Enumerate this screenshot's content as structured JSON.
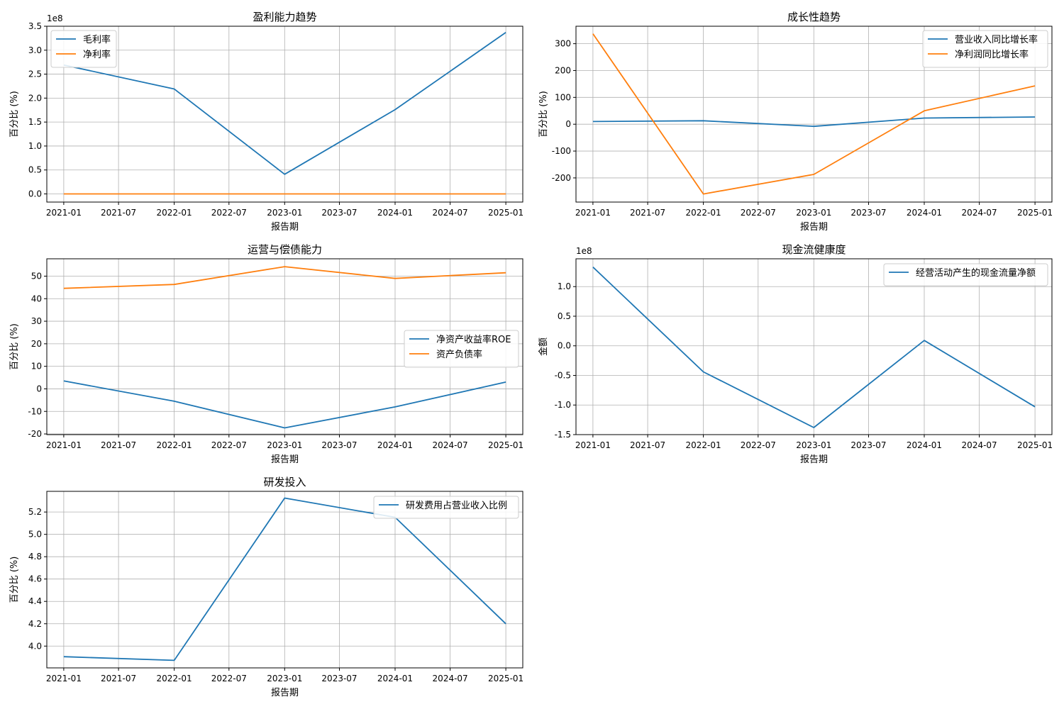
{
  "chart_data": [
    {
      "type": "line",
      "title": "盈利能力趋势",
      "xlabel": "报告期",
      "ylabel": "百分比 (%)",
      "offset_label": "1e8",
      "y_scale": 100000000,
      "x_ticks": [
        "2021-01",
        "2021-07",
        "2022-01",
        "2022-07",
        "2023-01",
        "2023-07",
        "2024-01",
        "2024-07",
        "2025-01"
      ],
      "y_ticks": [
        0.0,
        0.5,
        1.0,
        1.5,
        2.0,
        2.5,
        3.0,
        3.5
      ],
      "y_tick_labels": [
        "0.0",
        "0.5",
        "1.0",
        "1.5",
        "2.0",
        "2.5",
        "3.0",
        "3.5"
      ],
      "ylim": [
        -0.17,
        3.5
      ],
      "legend_position": "upper-left",
      "x": [
        "2021-01",
        "2022-01",
        "2023-01",
        "2024-01",
        "2025-01"
      ],
      "series": [
        {
          "name": "毛利率",
          "color": "#1f77b4",
          "values": [
            269000000,
            219000000,
            41000000,
            176000000,
            337000000
          ]
        },
        {
          "name": "净利率",
          "color": "#ff7f0e",
          "values": [
            0,
            0,
            0,
            0,
            0
          ]
        }
      ]
    },
    {
      "type": "line",
      "title": "成长性趋势",
      "xlabel": "报告期",
      "ylabel": "百分比 (%)",
      "offset_label": "",
      "y_scale": 1,
      "x_ticks": [
        "2021-01",
        "2021-07",
        "2022-01",
        "2022-07",
        "2023-01",
        "2023-07",
        "2024-01",
        "2024-07",
        "2025-01"
      ],
      "y_ticks": [
        -200,
        -100,
        0,
        100,
        200,
        300
      ],
      "y_tick_labels": [
        "-200",
        "-100",
        "0",
        "100",
        "200",
        "300"
      ],
      "ylim": [
        -290,
        365
      ],
      "legend_position": "upper-right",
      "x": [
        "2021-01",
        "2022-01",
        "2023-01",
        "2024-01",
        "2025-01"
      ],
      "series": [
        {
          "name": "营业收入同比增长率",
          "color": "#1f77b4",
          "values": [
            10,
            13,
            -8,
            23,
            27
          ]
        },
        {
          "name": "净利润同比增长率",
          "color": "#ff7f0e",
          "values": [
            337,
            -260,
            -187,
            50,
            143
          ]
        }
      ]
    },
    {
      "type": "line",
      "title": "运营与偿债能力",
      "xlabel": "报告期",
      "ylabel": "百分比 (%)",
      "offset_label": "",
      "y_scale": 1,
      "x_ticks": [
        "2021-01",
        "2021-07",
        "2022-01",
        "2022-07",
        "2023-01",
        "2023-07",
        "2024-01",
        "2024-07",
        "2025-01"
      ],
      "y_ticks": [
        -20,
        -10,
        0,
        10,
        20,
        30,
        40,
        50
      ],
      "y_tick_labels": [
        "-20",
        "-10",
        "0",
        "10",
        "20",
        "30",
        "40",
        "50"
      ],
      "ylim": [
        -20.3,
        57.7
      ],
      "legend_position": "center-right",
      "x": [
        "2021-01",
        "2022-01",
        "2023-01",
        "2024-01",
        "2025-01"
      ],
      "series": [
        {
          "name": "净资产收益率ROE",
          "color": "#1f77b4",
          "values": [
            3.5,
            -5.5,
            -17.3,
            -8,
            3
          ]
        },
        {
          "name": "资产负债率",
          "color": "#ff7f0e",
          "values": [
            44.6,
            46.3,
            54.2,
            49,
            51.5
          ]
        }
      ]
    },
    {
      "type": "line",
      "title": "现金流健康度",
      "xlabel": "报告期",
      "ylabel": "金额",
      "offset_label": "1e8",
      "y_scale": 100000000,
      "x_ticks": [
        "2021-01",
        "2021-07",
        "2022-01",
        "2022-07",
        "2023-01",
        "2023-07",
        "2024-01",
        "2024-07",
        "2025-01"
      ],
      "y_ticks": [
        -1.5,
        -1.0,
        -0.5,
        0.0,
        0.5,
        1.0
      ],
      "y_tick_labels": [
        "-1.5",
        "-1.0",
        "-0.5",
        "0.0",
        "0.5",
        "1.0"
      ],
      "ylim": [
        -1.5,
        1.47
      ],
      "legend_position": "upper-right",
      "x": [
        "2021-01",
        "2022-01",
        "2023-01",
        "2024-01",
        "2025-01"
      ],
      "series": [
        {
          "name": "经营活动产生的现金流量净额",
          "color": "#1f77b4",
          "values": [
            133000000,
            -44000000,
            -138000000,
            9000000,
            -103000000
          ]
        }
      ]
    },
    {
      "type": "line",
      "title": "研发投入",
      "xlabel": "报告期",
      "ylabel": "百分比 (%)",
      "offset_label": "",
      "y_scale": 1,
      "x_ticks": [
        "2021-01",
        "2021-07",
        "2022-01",
        "2022-07",
        "2023-01",
        "2023-07",
        "2024-01",
        "2024-07",
        "2025-01"
      ],
      "y_ticks": [
        4.0,
        4.2,
        4.4,
        4.6,
        4.8,
        5.0,
        5.2
      ],
      "y_tick_labels": [
        "4.0",
        "4.2",
        "4.4",
        "4.6",
        "4.8",
        "5.0",
        "5.2"
      ],
      "ylim": [
        3.805,
        5.385
      ],
      "legend_position": "upper-right",
      "x": [
        "2021-01",
        "2022-01",
        "2023-01",
        "2024-01",
        "2025-01"
      ],
      "series": [
        {
          "name": "研发费用占营业收入比例",
          "color": "#1f77b4",
          "values": [
            3.905,
            3.872,
            5.325,
            5.153,
            4.2
          ]
        }
      ]
    }
  ]
}
